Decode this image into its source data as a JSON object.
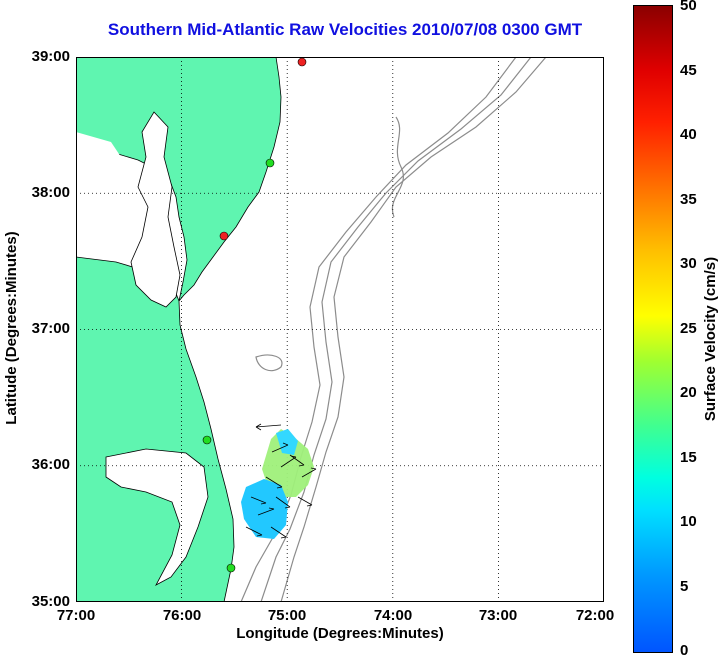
{
  "title": "Southern Mid-Atlantic Raw Velocities 2010/07/08 0300 GMT",
  "x_axis": {
    "label": "Longitude (Degrees:Minutes)",
    "ticks": [
      "77:00",
      "76:00",
      "75:00",
      "74:00",
      "73:00",
      "72:00"
    ]
  },
  "y_axis": {
    "label": "Latitude (Degrees:Minutes)",
    "ticks": [
      "39:00",
      "38:00",
      "37:00",
      "36:00",
      "35:00"
    ]
  },
  "colorbar": {
    "label": "Surface Velocity (cm/s)",
    "ticks": [
      "50",
      "45",
      "40",
      "35",
      "30",
      "25",
      "20",
      "15",
      "10",
      "5",
      "0"
    ],
    "range": [
      0,
      50
    ]
  },
  "colors": {
    "land": "#5ff5b0",
    "title": "#1010e0",
    "bathymetry": "#8c8c8c",
    "site_active": "#22dd22",
    "site_inactive": "#ee2222"
  },
  "map": {
    "lon_range": [
      -77,
      -72
    ],
    "lat_range": [
      35,
      39
    ],
    "grid": "dotted",
    "sites": [
      {
        "lat": 38.95,
        "lon": -74.87,
        "status": "inactive"
      },
      {
        "lat": 38.22,
        "lon": -75.16,
        "status": "active"
      },
      {
        "lat": 37.68,
        "lon": -75.55,
        "status": "inactive"
      },
      {
        "lat": 36.18,
        "lon": -75.75,
        "status": "active"
      },
      {
        "lat": 35.25,
        "lon": -75.52,
        "status": "active"
      }
    ]
  }
}
